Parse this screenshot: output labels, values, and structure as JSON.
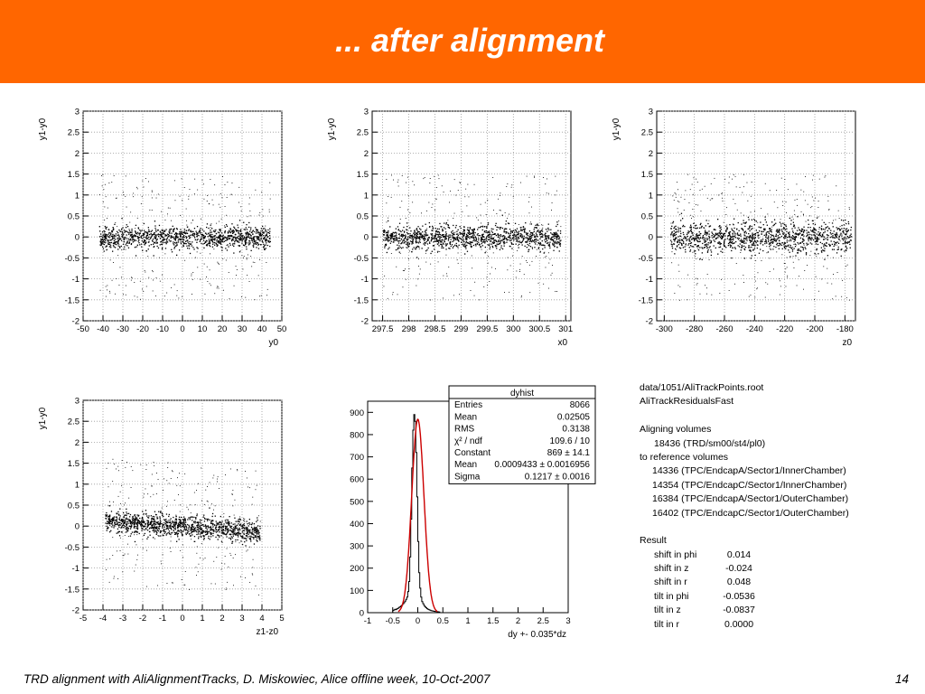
{
  "slide": {
    "title": "... after alignment",
    "footer": "TRD alignment with AliAlignmentTracks,  D. Miskowiec, Alice offline week, 10-Oct-2007",
    "page_number": "14",
    "header_color": "#ff6600"
  },
  "info": {
    "file": "data/1051/AliTrackPoints.root",
    "class": "AliTrackResidualsFast",
    "aligning_label": "Aligning volumes",
    "aligning_volume": "18436 (TRD/sm00/st4/pl0)",
    "reference_label": "to reference volumes",
    "reference_volumes": [
      "14336 (TPC/EndcapA/Sector1/InnerChamber)",
      "14354 (TPC/EndcapC/Sector1/InnerChamber)",
      "16384 (TPC/EndcapA/Sector1/OuterChamber)",
      "16402 (TPC/EndcapC/Sector1/OuterChamber)"
    ],
    "result_label": "Result",
    "results": [
      {
        "label": "shift in phi",
        "value": "0.014"
      },
      {
        "label": "shift in z",
        "value": "-0.024"
      },
      {
        "label": "shift in r",
        "value": "0.048"
      },
      {
        "label": "tilt in phi",
        "value": "-0.0536"
      },
      {
        "label": "tilt in z",
        "value": "-0.0837"
      },
      {
        "label": "tilt in r",
        "value": "0.0000"
      }
    ]
  },
  "chart_data": [
    {
      "type": "scatter",
      "ylabel": "y1-y0",
      "xlabel": "y0",
      "xlim": [
        -50,
        50
      ],
      "ylim": [
        -2,
        3
      ],
      "xticks": [
        "-50",
        "-40",
        "-30",
        "-20",
        "-10",
        "0",
        "10",
        "20",
        "30",
        "40",
        "50"
      ],
      "yticks": [
        "-2",
        "-1.5",
        "-1",
        "-0.5",
        "0",
        "0.5",
        "1",
        "1.5",
        "2",
        "2.5",
        "3"
      ],
      "band": {
        "x_range": [
          -42,
          44
        ],
        "center": 0.0,
        "slope": 0.0,
        "width": 0.13
      }
    },
    {
      "type": "scatter",
      "ylabel": "y1-y0",
      "xlabel": "x0",
      "xlim": [
        297.3,
        301.1
      ],
      "ylim": [
        -2,
        3
      ],
      "xticks": [
        "297.5",
        "298",
        "298.5",
        "299",
        "299.5",
        "300",
        "300.5",
        "301"
      ],
      "yticks": [
        "-2",
        "-1.5",
        "-1",
        "-0.5",
        "0",
        "0.5",
        "1",
        "1.5",
        "2",
        "2.5",
        "3"
      ],
      "band": {
        "x_range": [
          297.5,
          300.9
        ],
        "center": 0.0,
        "slope": 0.0,
        "width": 0.14
      }
    },
    {
      "type": "scatter",
      "ylabel": "y1-y0",
      "xlabel": "z0",
      "xlim": [
        -305,
        -173
      ],
      "ylim": [
        -2,
        3
      ],
      "xticks": [
        "-300",
        "-280",
        "-260",
        "-240",
        "-220",
        "-200",
        "-180"
      ],
      "yticks": [
        "-2",
        "-1.5",
        "-1",
        "-0.5",
        "0",
        "0.5",
        "1",
        "1.5",
        "2",
        "2.5",
        "3"
      ],
      "band": {
        "x_range": [
          -296,
          -176
        ],
        "center": 0.0,
        "slope": 0.0,
        "width": 0.18
      }
    },
    {
      "type": "scatter",
      "ylabel": "y1-y0",
      "xlabel": "z1-z0",
      "xlim": [
        -5,
        5
      ],
      "ylim": [
        -2,
        3
      ],
      "xticks": [
        "-5",
        "-4",
        "-3",
        "-2",
        "-1",
        "0",
        "1",
        "2",
        "3",
        "4",
        "5"
      ],
      "yticks": [
        "-2",
        "-1.5",
        "-1",
        "-0.5",
        "0",
        "0.5",
        "1",
        "1.5",
        "2",
        "2.5",
        "3"
      ],
      "band": {
        "x_range": [
          -3.9,
          3.9
        ],
        "center": 0.0,
        "slope": -0.035,
        "width": 0.13
      }
    },
    {
      "type": "histogram",
      "xlabel": "dy +- 0.035*dz",
      "xlim": [
        -1,
        3
      ],
      "ylim": [
        0,
        950
      ],
      "xticks": [
        "-1",
        "-0.5",
        "0",
        "0.5",
        "1",
        "1.5",
        "2",
        "2.5",
        "3"
      ],
      "yticks": [
        "0",
        "100",
        "200",
        "300",
        "400",
        "500",
        "600",
        "700",
        "800",
        "900"
      ],
      "bin_edges_start": -0.5,
      "bin_width": 0.02,
      "counts": [
        10,
        12,
        15,
        14,
        18,
        20,
        24,
        26,
        30,
        34,
        40,
        45,
        52,
        60,
        70,
        95,
        140,
        250,
        420,
        650,
        820,
        890,
        860,
        720,
        520,
        320,
        180,
        110,
        70,
        50,
        40,
        32,
        26,
        22,
        18,
        15,
        13,
        11,
        9,
        8,
        7,
        6,
        5,
        5,
        4,
        4,
        3
      ],
      "fit": {
        "constant": 869,
        "mean": 0.0009433,
        "sigma": 0.1217
      },
      "stats": {
        "title": "dyhist",
        "rows": [
          {
            "label": "Entries",
            "value": "8066"
          },
          {
            "label": "Mean",
            "value": "0.02505"
          },
          {
            "label": "RMS",
            "value": "0.3138"
          },
          {
            "label": "χ² / ndf",
            "value": "109.6 / 10"
          },
          {
            "label": "Constant",
            "value": "869 ± 14.1"
          },
          {
            "label": "Mean",
            "value": "0.0009433 ± 0.0016956"
          },
          {
            "label": "Sigma",
            "value": "0.1217 ± 0.0016"
          }
        ]
      }
    }
  ]
}
